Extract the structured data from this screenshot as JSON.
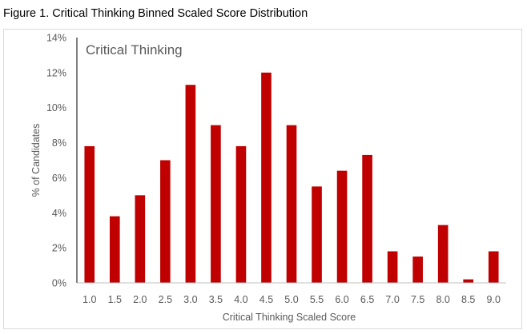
{
  "figure_title": "Figure 1. Critical Thinking Binned Scaled Score Distribution",
  "chart_data": {
    "type": "bar",
    "title": "Critical Thinking",
    "xlabel": "Critical Thinking Scaled Score",
    "ylabel": "% of Candidates",
    "categories": [
      "1.0",
      "1.5",
      "2.0",
      "2.5",
      "3.0",
      "3.5",
      "4.0",
      "4.5",
      "5.0",
      "5.5",
      "6.0",
      "6.5",
      "7.0",
      "7.5",
      "8.0",
      "8.5",
      "9.0"
    ],
    "values": [
      7.8,
      3.8,
      5.0,
      7.0,
      11.3,
      9.0,
      7.8,
      12.0,
      9.0,
      5.5,
      6.4,
      7.3,
      1.8,
      1.5,
      3.3,
      0.2,
      1.8
    ],
    "ylim": [
      0,
      14
    ],
    "yticks": [
      0,
      2,
      4,
      6,
      8,
      10,
      12,
      14
    ],
    "ytick_labels": [
      "0%",
      "2%",
      "4%",
      "6%",
      "8%",
      "10%",
      "12%",
      "14%"
    ],
    "grid": false,
    "legend": "none",
    "bar_color": "#c00000"
  }
}
